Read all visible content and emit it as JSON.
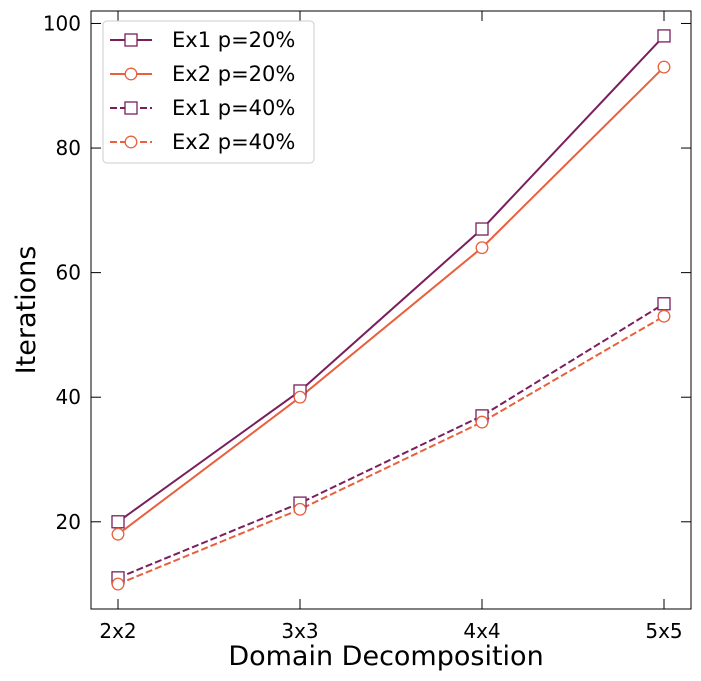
{
  "chart_data": {
    "type": "line",
    "title": "",
    "xlabel": "Domain Decomposition",
    "ylabel": "Iterations",
    "categories": [
      "2x2",
      "3x3",
      "4x4",
      "5x5"
    ],
    "ylim": [
      6,
      102
    ],
    "yticks": [
      20,
      40,
      60,
      80,
      100
    ],
    "grid": false,
    "legend_position": "top-left",
    "series": [
      {
        "name": "Ex1 p=20%",
        "values": [
          20,
          41,
          67,
          98
        ],
        "color": "#7a1f5c",
        "marker": "square",
        "linestyle": "solid"
      },
      {
        "name": "Ex2 p=20%",
        "values": [
          18,
          40,
          64,
          93
        ],
        "color": "#e8603e",
        "marker": "circle",
        "linestyle": "solid"
      },
      {
        "name": "Ex1 p=40%",
        "values": [
          11,
          23,
          37,
          55
        ],
        "color": "#7a1f5c",
        "marker": "square",
        "linestyle": "dashed"
      },
      {
        "name": "Ex2 p=40%",
        "values": [
          10,
          22,
          36,
          53
        ],
        "color": "#e8603e",
        "marker": "circle",
        "linestyle": "dashed"
      }
    ]
  }
}
